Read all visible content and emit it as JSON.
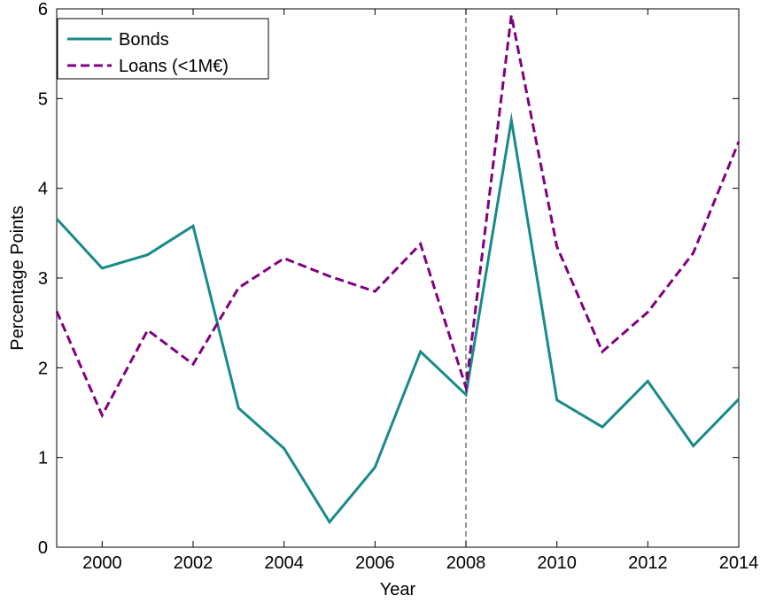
{
  "chart_data": {
    "type": "line",
    "xlabel": "Year",
    "ylabel": "Percentage Points",
    "xlim": [
      1999,
      2014
    ],
    "ylim": [
      0,
      6
    ],
    "xticks": [
      2000,
      2002,
      2004,
      2006,
      2008,
      2010,
      2012,
      2014
    ],
    "yticks": [
      0,
      1,
      2,
      3,
      4,
      5,
      6
    ],
    "x": [
      1999,
      2000,
      2001,
      2002,
      2003,
      2004,
      2005,
      2006,
      2007,
      2008,
      2009,
      2010,
      2011,
      2012,
      2013,
      2014
    ],
    "series": [
      {
        "name": "Bonds",
        "color": "#1a8a8a",
        "style": "solid",
        "values": [
          3.66,
          3.11,
          3.26,
          3.58,
          1.55,
          1.1,
          0.28,
          0.89,
          2.18,
          1.7,
          4.76,
          1.64,
          1.34,
          1.85,
          1.13,
          1.65
        ]
      },
      {
        "name": "Loans (<1M€)",
        "color": "#800080",
        "style": "dashed",
        "values": [
          2.63,
          1.47,
          2.42,
          2.04,
          2.89,
          3.22,
          3.02,
          2.85,
          3.38,
          1.78,
          5.93,
          3.35,
          2.18,
          2.62,
          3.28,
          4.52
        ]
      }
    ],
    "vline": {
      "x": 2008,
      "color": "#555555",
      "style": "dashed"
    },
    "legend_position": "top-left",
    "grid": false
  }
}
